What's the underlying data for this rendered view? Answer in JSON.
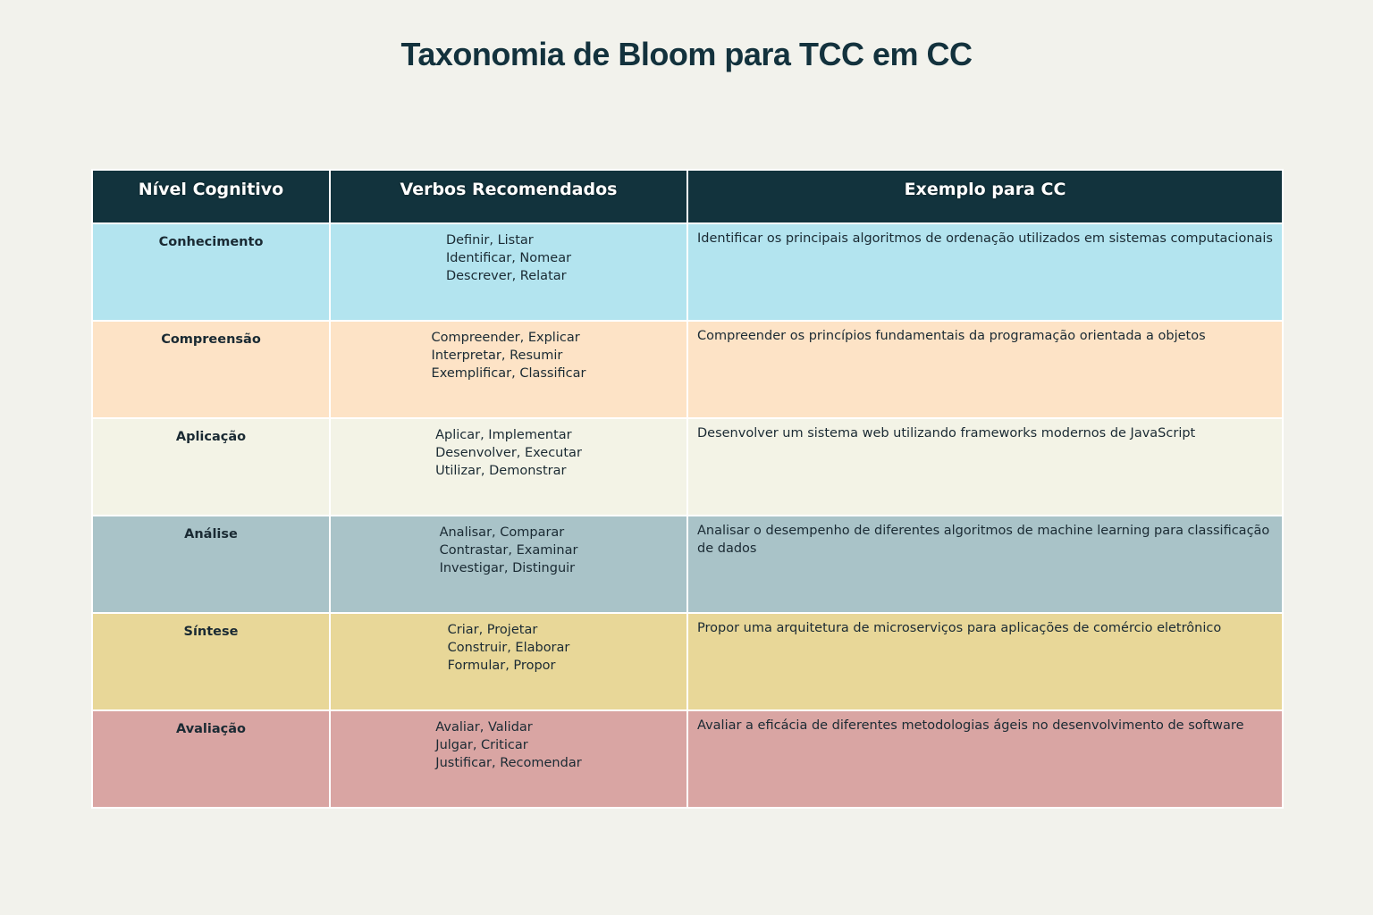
{
  "title": "Taxonomia de Bloom para TCC em CC",
  "colors": {
    "background": "#f2f2ec",
    "header": "#12333d",
    "rows": [
      "#b3e4ef",
      "#fde3c6",
      "#f3f3e6",
      "#a9c3c8",
      "#e8d798",
      "#d9a5a3"
    ]
  },
  "chart_data": {
    "type": "table",
    "title": "Taxonomia de Bloom para TCC em CC",
    "columns": [
      "Nível Cognitivo",
      "Verbos Recomendados",
      "Exemplo para CC"
    ],
    "rows": [
      {
        "level": "Conhecimento",
        "verbs": [
          "Definir, Listar",
          "Identificar, Nomear",
          "Descrever, Relatar"
        ],
        "example": "Identificar os principais algoritmos de ordenação utilizados em sistemas computacionais"
      },
      {
        "level": "Compreensão",
        "verbs": [
          "Compreender, Explicar",
          "Interpretar, Resumir",
          "Exemplificar, Classificar"
        ],
        "example": "Compreender os princípios fundamentais da programação orientada a objetos"
      },
      {
        "level": "Aplicação",
        "verbs": [
          "Aplicar, Implementar",
          "Desenvolver, Executar",
          "Utilizar, Demonstrar"
        ],
        "example": "Desenvolver um sistema web utilizando frameworks modernos de JavaScript"
      },
      {
        "level": "Análise",
        "verbs": [
          "Analisar, Comparar",
          "Contrastar, Examinar",
          "Investigar, Distinguir"
        ],
        "example": "Analisar o desempenho de diferentes algoritmos de machine learning para classificação de dados"
      },
      {
        "level": "Síntese",
        "verbs": [
          "Criar, Projetar",
          "Construir, Elaborar",
          "Formular, Propor"
        ],
        "example": "Propor uma arquitetura de microserviços para aplicações de comércio eletrônico"
      },
      {
        "level": "Avaliação",
        "verbs": [
          "Avaliar, Validar",
          "Julgar, Criticar",
          "Justificar, Recomendar"
        ],
        "example": "Avaliar a eficácia de diferentes metodologias ágeis no desenvolvimento de software"
      }
    ]
  }
}
